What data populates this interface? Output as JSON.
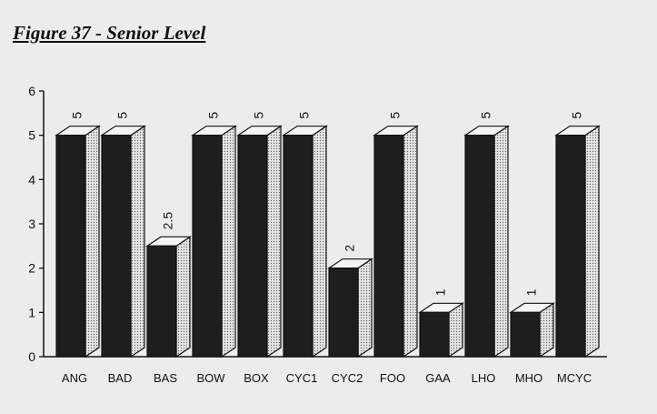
{
  "figure": {
    "title": "Figure 37 - Senior Level"
  },
  "colors": {
    "bar_front": "#1e1e1e",
    "bar_top": "#f4f4f4",
    "bar_side": "#bdbdbd",
    "axis": "#111111",
    "background": "#ececec"
  },
  "chart_data": {
    "type": "bar",
    "title": "",
    "xlabel": "",
    "ylabel": "",
    "categories": [
      "ANG",
      "BAD",
      "BAS",
      "BOW",
      "BOX",
      "CYC1",
      "CYC2",
      "FOO",
      "GAA",
      "LHO",
      "MHO",
      "MCYC"
    ],
    "values": [
      5,
      5,
      2.5,
      5,
      5,
      5,
      2,
      5,
      1,
      5,
      1,
      5
    ],
    "data_labels": [
      "5",
      "5",
      "2.5",
      "5",
      "5",
      "5",
      "2",
      "5",
      "1",
      "5",
      "1",
      "5"
    ],
    "ylim": [
      0,
      6
    ],
    "yticks": [
      "0",
      "1",
      "2",
      "3",
      "4",
      "5",
      "6"
    ],
    "grid": false,
    "legend": "none",
    "style": "3d"
  }
}
